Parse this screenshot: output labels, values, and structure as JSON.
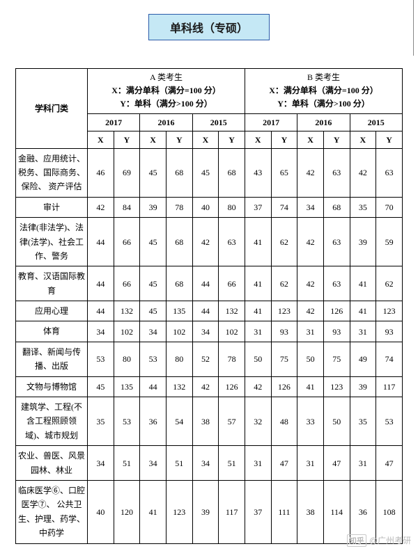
{
  "title": "单科线（专硕）",
  "header": {
    "subject_col": "学科门类",
    "groups": [
      {
        "title": "A 类考生",
        "lineX": "X：满分单科（满分=100 分）",
        "lineY": "Y：单科（满分>100 分）"
      },
      {
        "title": "B 类考生",
        "lineX": "X：满分单科（满分=100 分）",
        "lineY": "Y：单科（满分>100 分）"
      }
    ],
    "years": [
      "2017",
      "2016",
      "2015",
      "2017",
      "2016",
      "2015"
    ],
    "xy": [
      "X",
      "Y",
      "X",
      "Y",
      "X",
      "Y",
      "X",
      "Y",
      "X",
      "Y",
      "X",
      "Y"
    ]
  },
  "rows": [
    {
      "subject": "金融、应用统计、税务、国际商务、保险、 资产评估",
      "vals": [
        46,
        69,
        45,
        68,
        45,
        68,
        43,
        65,
        42,
        63,
        42,
        63
      ]
    },
    {
      "subject": "审计",
      "vals": [
        42,
        84,
        39,
        78,
        40,
        80,
        37,
        74,
        34,
        68,
        35,
        70
      ]
    },
    {
      "subject": "法律(非法学)、法律(法学)、社会工作、警务",
      "vals": [
        44,
        66,
        45,
        68,
        42,
        63,
        41,
        62,
        42,
        63,
        39,
        59
      ]
    },
    {
      "subject": "教育、汉语国际教育",
      "vals": [
        44,
        66,
        45,
        68,
        44,
        66,
        41,
        62,
        42,
        63,
        41,
        62
      ]
    },
    {
      "subject": "应用心理",
      "vals": [
        44,
        132,
        45,
        135,
        44,
        132,
        41,
        123,
        42,
        126,
        41,
        123
      ]
    },
    {
      "subject": "体育",
      "vals": [
        34,
        102,
        34,
        102,
        34,
        102,
        31,
        93,
        31,
        93,
        31,
        93
      ]
    },
    {
      "subject": "翻译、新闻与传播、出版",
      "vals": [
        53,
        80,
        53,
        80,
        52,
        78,
        50,
        75,
        50,
        75,
        49,
        74
      ]
    },
    {
      "subject": "文物与博物馆",
      "vals": [
        45,
        135,
        44,
        132,
        42,
        126,
        42,
        126,
        41,
        123,
        39,
        117
      ]
    },
    {
      "subject": "建筑学、工程(不含工程照顾领域)、城市规划",
      "vals": [
        35,
        53,
        36,
        54,
        38,
        57,
        32,
        48,
        33,
        50,
        35,
        53
      ]
    },
    {
      "subject": "农业、兽医、风景园林、林业",
      "vals": [
        34,
        51,
        34,
        51,
        34,
        51,
        31,
        47,
        31,
        47,
        31,
        47
      ]
    },
    {
      "subject": "临床医学⑥、口腔医学⑦、 公共卫生、护理、药学、中药学",
      "vals": [
        40,
        120,
        41,
        123,
        39,
        117,
        37,
        111,
        38,
        114,
        36,
        108
      ]
    }
  ],
  "watermark": {
    "brand": "知乎",
    "author": "@广州考研"
  }
}
